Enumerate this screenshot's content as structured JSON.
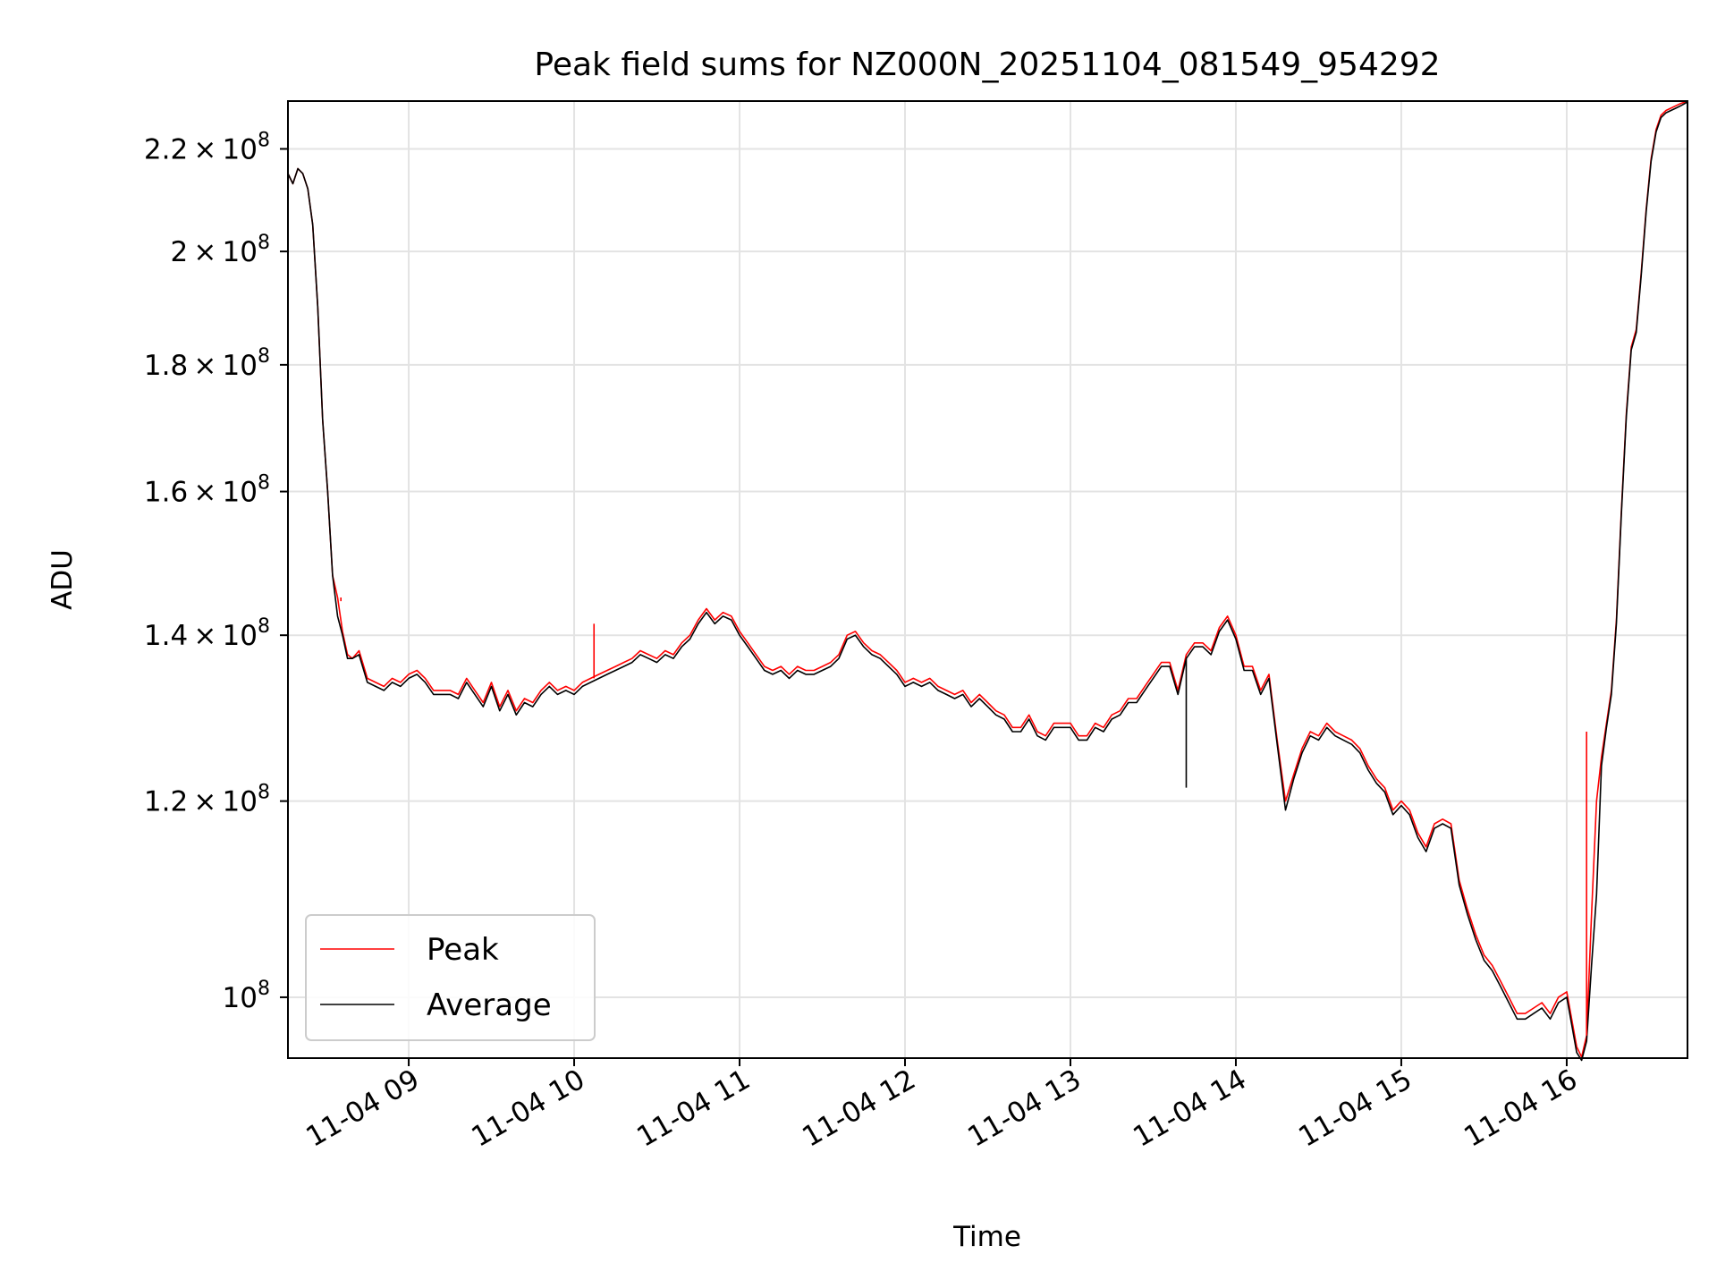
{
  "chart_data": {
    "type": "line",
    "title": "Peak field sums for NZ000N_20251104_081549_954292",
    "xlabel": "Time",
    "ylabel": "ADU",
    "yscale": "log",
    "xlim": [
      8.27,
      16.73
    ],
    "ylim": [
      94500000,
      230000000
    ],
    "grid": true,
    "legend_position": "lower-left",
    "x_ticks": [
      {
        "value": 9,
        "label": "11-04 09"
      },
      {
        "value": 10,
        "label": "11-04 10"
      },
      {
        "value": 11,
        "label": "11-04 11"
      },
      {
        "value": 12,
        "label": "11-04 12"
      },
      {
        "value": 13,
        "label": "11-04 13"
      },
      {
        "value": 14,
        "label": "11-04 14"
      },
      {
        "value": 15,
        "label": "11-04 15"
      },
      {
        "value": 16,
        "label": "11-04 16"
      }
    ],
    "y_ticks": [
      {
        "value": 100000000,
        "mantissa": "",
        "exponent": "8",
        "label": "10^8"
      },
      {
        "value": 120000000,
        "mantissa": "1.2",
        "exponent": "8",
        "label": "1.2×10^8"
      },
      {
        "value": 140000000,
        "mantissa": "1.4",
        "exponent": "8",
        "label": "1.4×10^8"
      },
      {
        "value": 160000000,
        "mantissa": "1.6",
        "exponent": "8",
        "label": "1.6×10^8"
      },
      {
        "value": 180000000,
        "mantissa": "1.8",
        "exponent": "8",
        "label": "1.8×10^8"
      },
      {
        "value": 200000000,
        "mantissa": "2",
        "exponent": "8",
        "label": "2×10^8"
      },
      {
        "value": 220000000,
        "mantissa": "2.2",
        "exponent": "8",
        "label": "2.2×10^8"
      }
    ],
    "x_units": "hour of day (2025-11-04)",
    "series": [
      {
        "name": "Peak",
        "color": "#ff0000",
        "x": [
          8.27,
          8.3,
          8.33,
          8.36,
          8.39,
          8.42,
          8.45,
          8.48,
          8.51,
          8.54,
          8.57,
          8.6,
          8.63,
          8.66,
          8.7,
          8.75,
          8.8,
          8.85,
          8.9,
          8.95,
          9.0,
          9.05,
          9.1,
          9.15,
          9.2,
          9.25,
          9.3,
          9.35,
          9.4,
          9.45,
          9.5,
          9.55,
          9.6,
          9.65,
          9.7,
          9.75,
          9.8,
          9.85,
          9.9,
          9.95,
          10.0,
          10.05,
          10.1,
          10.15,
          10.2,
          10.25,
          10.3,
          10.35,
          10.4,
          10.45,
          10.5,
          10.55,
          10.6,
          10.65,
          10.7,
          10.75,
          10.8,
          10.85,
          10.9,
          10.95,
          11.0,
          11.05,
          11.1,
          11.15,
          11.2,
          11.25,
          11.3,
          11.35,
          11.4,
          11.45,
          11.5,
          11.55,
          11.6,
          11.65,
          11.7,
          11.75,
          11.8,
          11.85,
          11.9,
          11.95,
          12.0,
          12.05,
          12.1,
          12.15,
          12.2,
          12.25,
          12.3,
          12.35,
          12.4,
          12.45,
          12.5,
          12.55,
          12.6,
          12.65,
          12.7,
          12.75,
          12.8,
          12.85,
          12.9,
          12.95,
          13.0,
          13.05,
          13.1,
          13.15,
          13.2,
          13.25,
          13.3,
          13.35,
          13.4,
          13.45,
          13.5,
          13.55,
          13.6,
          13.65,
          13.7,
          13.75,
          13.8,
          13.85,
          13.9,
          13.95,
          14.0,
          14.05,
          14.1,
          14.15,
          14.2,
          14.25,
          14.3,
          14.35,
          14.4,
          14.45,
          14.5,
          14.55,
          14.6,
          14.65,
          14.7,
          14.75,
          14.8,
          14.85,
          14.9,
          14.95,
          15.0,
          15.05,
          15.1,
          15.15,
          15.2,
          15.25,
          15.3,
          15.35,
          15.4,
          15.45,
          15.5,
          15.55,
          15.6,
          15.65,
          15.7,
          15.75,
          15.8,
          15.85,
          15.9,
          15.95,
          16.0,
          16.03,
          16.06,
          16.09,
          16.12,
          16.15,
          16.18,
          16.21,
          16.24,
          16.27,
          16.3,
          16.33,
          16.36,
          16.39,
          16.42,
          16.45,
          16.48,
          16.51,
          16.54,
          16.57,
          16.6,
          16.63,
          16.66,
          16.69,
          16.73
        ],
        "y": [
          215000000,
          213000000,
          216000000,
          215000000,
          212000000,
          205000000,
          190000000,
          171000000,
          160000000,
          148000000,
          145000000,
          140500000,
          137500000,
          137000000,
          138000000,
          134500000,
          134000000,
          133500000,
          134500000,
          134000000,
          135000000,
          135500000,
          134500000,
          133000000,
          133000000,
          133000000,
          132500000,
          134500000,
          133000000,
          131500000,
          134000000,
          131000000,
          133000000,
          130500000,
          132000000,
          131500000,
          133000000,
          134000000,
          133000000,
          133500000,
          133000000,
          134000000,
          134500000,
          135000000,
          135500000,
          136000000,
          136500000,
          137000000,
          138000000,
          137500000,
          137000000,
          138000000,
          137500000,
          139000000,
          140000000,
          142000000,
          143500000,
          142000000,
          143000000,
          142500000,
          140500000,
          139000000,
          137500000,
          136000000,
          135500000,
          136000000,
          135000000,
          136000000,
          135500000,
          135500000,
          136000000,
          136500000,
          137500000,
          140000000,
          140500000,
          139000000,
          138000000,
          137500000,
          136500000,
          135500000,
          134000000,
          134500000,
          134000000,
          134500000,
          133500000,
          133000000,
          132500000,
          133000000,
          131500000,
          132500000,
          131500000,
          130500000,
          130000000,
          128500000,
          128500000,
          130000000,
          128000000,
          127500000,
          129000000,
          129000000,
          129000000,
          127500000,
          127500000,
          129000000,
          128500000,
          130000000,
          130500000,
          132000000,
          132000000,
          133500000,
          135000000,
          136500000,
          136500000,
          133000000,
          137500000,
          139000000,
          139000000,
          138000000,
          141000000,
          142500000,
          140000000,
          136000000,
          136000000,
          133000000,
          135000000,
          127000000,
          120000000,
          123000000,
          126000000,
          128000000,
          127500000,
          129000000,
          128000000,
          127500000,
          127000000,
          126000000,
          124000000,
          122500000,
          121500000,
          119000000,
          120000000,
          119000000,
          116500000,
          115000000,
          117500000,
          118000000,
          117500000,
          111500000,
          108500000,
          106000000,
          104000000,
          103000000,
          101500000,
          100000000,
          98500000,
          98500000,
          99000000,
          99500000,
          98500000,
          100000000,
          100500000,
          98000000,
          95500000,
          94600000,
          96500000,
          108000000,
          120000000,
          125000000,
          129000000,
          133000000,
          142000000,
          157000000,
          172000000,
          183000000,
          186000000,
          196000000,
          208000000,
          218000000,
          224000000,
          227000000,
          228000000,
          228500000,
          229000000,
          229500000,
          230000000
        ]
      },
      {
        "name": "Average",
        "color": "#000000",
        "x": [
          8.27,
          8.3,
          8.33,
          8.36,
          8.39,
          8.42,
          8.45,
          8.48,
          8.51,
          8.54,
          8.57,
          8.6,
          8.63,
          8.66,
          8.7,
          8.75,
          8.8,
          8.85,
          8.9,
          8.95,
          9.0,
          9.05,
          9.1,
          9.15,
          9.2,
          9.25,
          9.3,
          9.35,
          9.4,
          9.45,
          9.5,
          9.55,
          9.6,
          9.65,
          9.7,
          9.75,
          9.8,
          9.85,
          9.9,
          9.95,
          10.0,
          10.05,
          10.1,
          10.15,
          10.2,
          10.25,
          10.3,
          10.35,
          10.4,
          10.45,
          10.5,
          10.55,
          10.6,
          10.65,
          10.7,
          10.75,
          10.8,
          10.85,
          10.9,
          10.95,
          11.0,
          11.05,
          11.1,
          11.15,
          11.2,
          11.25,
          11.3,
          11.35,
          11.4,
          11.45,
          11.5,
          11.55,
          11.6,
          11.65,
          11.7,
          11.75,
          11.8,
          11.85,
          11.9,
          11.95,
          12.0,
          12.05,
          12.1,
          12.15,
          12.2,
          12.25,
          12.3,
          12.35,
          12.4,
          12.45,
          12.5,
          12.55,
          12.6,
          12.65,
          12.7,
          12.75,
          12.8,
          12.85,
          12.9,
          12.95,
          13.0,
          13.05,
          13.1,
          13.15,
          13.2,
          13.25,
          13.3,
          13.35,
          13.4,
          13.45,
          13.5,
          13.55,
          13.6,
          13.65,
          13.7,
          13.75,
          13.8,
          13.85,
          13.9,
          13.95,
          14.0,
          14.05,
          14.1,
          14.15,
          14.2,
          14.25,
          14.3,
          14.35,
          14.4,
          14.45,
          14.5,
          14.55,
          14.6,
          14.65,
          14.7,
          14.75,
          14.8,
          14.85,
          14.9,
          14.95,
          15.0,
          15.05,
          15.1,
          15.15,
          15.2,
          15.25,
          15.3,
          15.35,
          15.4,
          15.45,
          15.5,
          15.55,
          15.6,
          15.65,
          15.7,
          15.75,
          15.8,
          15.85,
          15.9,
          15.95,
          16.0,
          16.03,
          16.06,
          16.09,
          16.12,
          16.15,
          16.18,
          16.21,
          16.24,
          16.27,
          16.3,
          16.33,
          16.36,
          16.39,
          16.42,
          16.45,
          16.48,
          16.51,
          16.54,
          16.57,
          16.6,
          16.63,
          16.66,
          16.69,
          16.73
        ],
        "y": [
          215000000,
          213000000,
          216000000,
          215000000,
          212000000,
          205000000,
          190000000,
          171000000,
          160000000,
          148000000,
          142500000,
          140000000,
          137000000,
          137000000,
          137500000,
          134000000,
          133500000,
          133000000,
          134000000,
          133500000,
          134500000,
          135000000,
          134000000,
          132500000,
          132500000,
          132500000,
          132000000,
          134000000,
          132500000,
          131000000,
          133500000,
          130500000,
          132500000,
          130000000,
          131500000,
          131000000,
          132500000,
          133500000,
          132500000,
          133000000,
          132500000,
          133500000,
          134000000,
          134500000,
          135000000,
          135500000,
          136000000,
          136500000,
          137500000,
          137000000,
          136500000,
          137500000,
          137000000,
          138500000,
          139500000,
          141500000,
          143000000,
          141500000,
          142500000,
          142000000,
          140000000,
          138500000,
          137000000,
          135500000,
          135000000,
          135500000,
          134500000,
          135500000,
          135000000,
          135000000,
          135500000,
          136000000,
          137000000,
          139500000,
          140000000,
          138500000,
          137500000,
          137000000,
          136000000,
          135000000,
          133500000,
          134000000,
          133500000,
          134000000,
          133000000,
          132500000,
          132000000,
          132500000,
          131000000,
          132000000,
          131000000,
          130000000,
          129500000,
          128000000,
          128000000,
          129500000,
          127500000,
          127000000,
          128500000,
          128500000,
          128500000,
          127000000,
          127000000,
          128500000,
          128000000,
          129500000,
          130000000,
          131500000,
          131500000,
          133000000,
          134500000,
          136000000,
          136000000,
          132500000,
          137000000,
          138500000,
          138500000,
          137500000,
          140500000,
          142000000,
          139500000,
          135500000,
          135500000,
          132500000,
          134500000,
          126500000,
          119000000,
          122500000,
          125500000,
          127500000,
          127000000,
          128500000,
          127500000,
          127000000,
          126500000,
          125500000,
          123500000,
          122000000,
          121000000,
          118500000,
          119500000,
          118500000,
          116000000,
          114500000,
          117000000,
          117500000,
          117000000,
          111000000,
          108000000,
          105500000,
          103500000,
          102500000,
          101000000,
          99500000,
          98000000,
          98000000,
          98500000,
          99000000,
          98000000,
          99500000,
          100000000,
          97500000,
          95000000,
          94300000,
          96000000,
          103000000,
          110000000,
          124000000,
          128500000,
          132500000,
          141500000,
          156500000,
          171500000,
          182500000,
          185500000,
          195500000,
          207500000,
          217500000,
          223500000,
          226500000,
          227500000,
          228000000,
          228500000,
          229000000,
          229800000
        ]
      }
    ],
    "spikes": [
      {
        "series": "Peak",
        "x": 8.59,
        "y": 144500000
      },
      {
        "series": "Peak",
        "x": 10.12,
        "y": 141500000
      },
      {
        "series": "Peak",
        "x": 16.12,
        "y": 128000000
      },
      {
        "series": "Average",
        "x": 13.7,
        "y": 121500000
      }
    ]
  }
}
